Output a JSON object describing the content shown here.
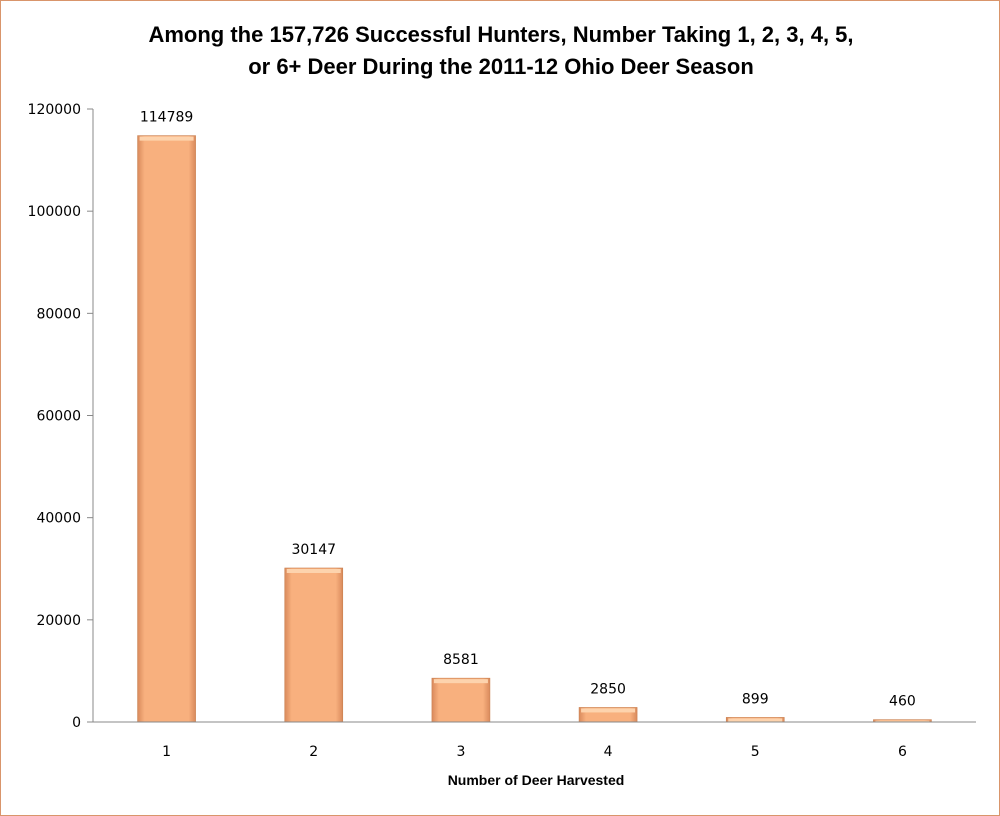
{
  "chart_data": {
    "type": "bar",
    "title_line1": "Among the 157,726 Successful Hunters, Number Taking 1, 2, 3, 4, 5,",
    "title_line2": "or 6+ Deer During the 2011-12 Ohio Deer Season",
    "xlabel": "Number of Deer Harvested",
    "ylabel": "",
    "categories": [
      "1",
      "2",
      "3",
      "4",
      "5",
      "6"
    ],
    "values": [
      114789,
      30147,
      8581,
      2850,
      899,
      460
    ],
    "ylim": [
      0,
      120000
    ],
    "yticks": [
      0,
      20000,
      40000,
      60000,
      80000,
      100000,
      120000
    ],
    "grid": false,
    "legend": "none",
    "bar_color": "#f8b07e",
    "border_color": "#d9956b"
  }
}
